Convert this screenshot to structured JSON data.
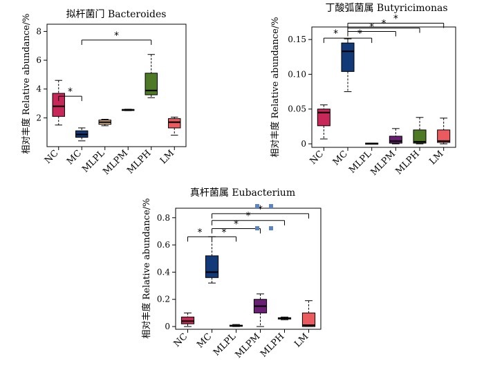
{
  "chart_data": [
    {
      "type": "box",
      "title": "拟杆菌门 Bacteroides",
      "ylabel": "相对丰度 Relative abundance/%",
      "categories": [
        "NC",
        "MC",
        "MLPL",
        "MLPM",
        "MLPH",
        "LM"
      ],
      "yticks": [
        "2",
        "4",
        "6",
        "8"
      ],
      "ylim": [
        0,
        8.5
      ],
      "colors": [
        "#c8275a",
        "#123a78",
        "#f2c08e",
        "#6b1f74",
        "#4e7a26",
        "#ea5a5e"
      ],
      "boxes": [
        {
          "min": 1.5,
          "q1": 2.1,
          "median": 2.8,
          "q3": 3.7,
          "max": 4.6
        },
        {
          "min": 0.4,
          "q1": 0.65,
          "median": 0.85,
          "q3": 1.1,
          "max": 1.3
        },
        {
          "min": 1.45,
          "q1": 1.55,
          "median": 1.7,
          "q3": 1.85,
          "max": 1.9
        },
        {
          "min": 2.5,
          "q1": 2.52,
          "median": 2.55,
          "q3": 2.58,
          "max": 2.6
        },
        {
          "min": 3.4,
          "q1": 3.6,
          "median": 3.9,
          "q3": 5.1,
          "max": 6.4
        },
        {
          "min": 0.8,
          "q1": 1.3,
          "median": 1.7,
          "q3": 1.95,
          "max": 2.05
        }
      ],
      "significance": [
        {
          "from": 0,
          "to": 1,
          "y": 3.5,
          "label": "*"
        },
        {
          "from": 1,
          "to": 4,
          "y": 7.4,
          "label": "*"
        }
      ]
    },
    {
      "type": "box",
      "title": "丁酸弧菌属 Butyricimonas",
      "ylabel": "相对丰度 Relative abundance/%",
      "categories": [
        "NC",
        "MC",
        "MLPL",
        "MLPM",
        "MLPH",
        "LM"
      ],
      "yticks": [
        "0",
        "0.05",
        "0.10",
        "0.15"
      ],
      "ylim": [
        -0.005,
        0.168
      ],
      "colors": [
        "#c8275a",
        "#123a78",
        "#f2c08e",
        "#6b1f74",
        "#4e7a26",
        "#ea5a5e"
      ],
      "boxes": [
        {
          "min": 0.007,
          "q1": 0.026,
          "median": 0.045,
          "q3": 0.05,
          "max": 0.056
        },
        {
          "min": 0.075,
          "q1": 0.104,
          "median": 0.133,
          "q3": 0.145,
          "max": 0.151
        },
        {
          "min": 0,
          "q1": 0,
          "median": 0.0005,
          "q3": 0.001,
          "max": 0.001
        },
        {
          "min": 0,
          "q1": 0.001,
          "median": 0.004,
          "q3": 0.011,
          "max": 0.022
        },
        {
          "min": 0,
          "q1": 0.001,
          "median": 0.003,
          "q3": 0.02,
          "max": 0.038
        },
        {
          "min": 0,
          "q1": 0.002,
          "median": 0.004,
          "q3": 0.02,
          "max": 0.037
        }
      ],
      "significance": [
        {
          "from": 0,
          "to": 1,
          "y": 0.152,
          "label": "*"
        },
        {
          "from": 1,
          "to": 2,
          "y": 0.152,
          "label": "*"
        },
        {
          "from": 1,
          "to": 3,
          "y": 0.1615,
          "label": "*"
        },
        {
          "from": 1,
          "to": 4,
          "y": 0.1665,
          "label": "*"
        },
        {
          "from": 1,
          "to": 5,
          "y": 0.1735,
          "label": "*"
        }
      ]
    },
    {
      "type": "box",
      "title": "真杆菌属 Eubacterium",
      "ylabel": "相对丰度 Relative abundance/%",
      "categories": [
        "NC",
        "MC",
        "MLPL",
        "MLPM",
        "MLPH",
        "LM"
      ],
      "yticks": [
        "0",
        "0.2",
        "0.4",
        "0.6",
        "0.8"
      ],
      "ylim": [
        -0.02,
        0.87
      ],
      "colors": [
        "#c8275a",
        "#123a78",
        "#f2c08e",
        "#6b1f74",
        "#4e7a26",
        "#ea5a5e"
      ],
      "boxes": [
        {
          "min": 0,
          "q1": 0.02,
          "median": 0.04,
          "q3": 0.07,
          "max": 0.1
        },
        {
          "min": 0.32,
          "q1": 0.36,
          "median": 0.4,
          "q3": 0.52,
          "max": 0.66
        },
        {
          "min": 0,
          "q1": 0.002,
          "median": 0.005,
          "q3": 0.01,
          "max": 0.015
        },
        {
          "min": 0,
          "q1": 0.1,
          "median": 0.15,
          "q3": 0.2,
          "max": 0.24
        },
        {
          "min": 0.05,
          "q1": 0.055,
          "median": 0.06,
          "q3": 0.065,
          "max": 0.07
        },
        {
          "min": 0,
          "q1": 0,
          "median": 0.01,
          "q3": 0.1,
          "max": 0.19
        }
      ],
      "significance": [
        {
          "from": 0,
          "to": 1,
          "y": 0.66,
          "label": "*"
        },
        {
          "from": 1,
          "to": 2,
          "y": 0.66,
          "label": "*"
        },
        {
          "from": 1,
          "to": 3,
          "y": 0.72,
          "label": "*"
        },
        {
          "from": 1,
          "to": 4,
          "y": 0.78,
          "label": "*"
        },
        {
          "from": 1,
          "to": 5,
          "y": 0.83,
          "label": "*"
        }
      ]
    }
  ]
}
